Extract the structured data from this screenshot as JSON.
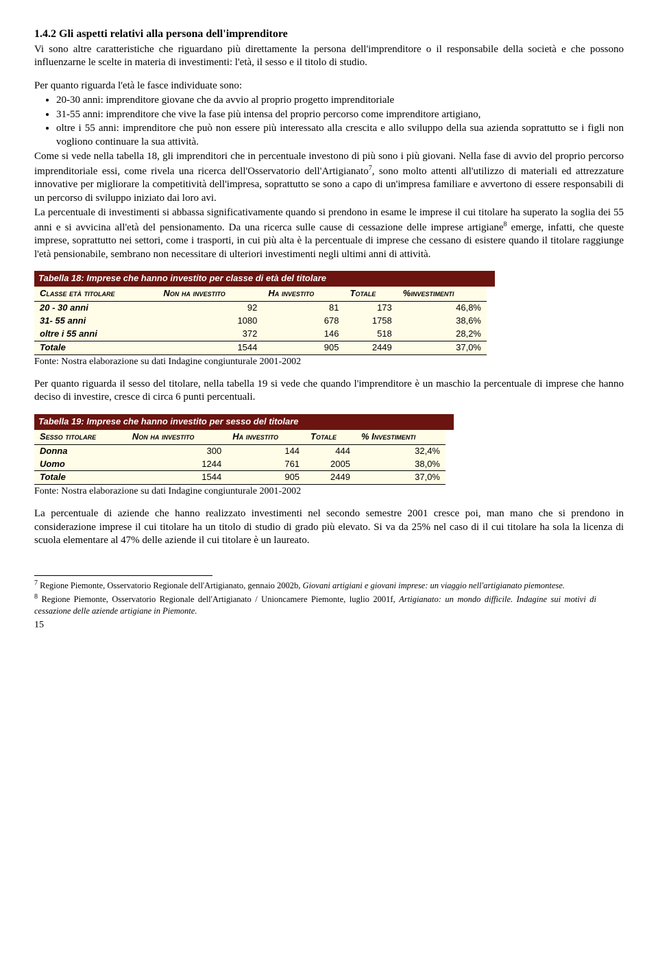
{
  "section": {
    "number": "1.4.2",
    "title": "Gli aspetti relativi alla persona dell'imprenditore"
  },
  "para1": "Vi sono altre caratteristiche che riguardano più direttamente la persona dell'imprenditore o il responsabile della società e che possono influenzarne le scelte in materia di investimenti: l'età, il sesso e il titolo di studio.",
  "para2": "Per quanto riguarda l'età le fasce individuate sono:",
  "bullets": [
    "20-30 anni: imprenditore giovane che da avvio al proprio progetto imprenditoriale",
    "31-55 anni: imprenditore che vive la fase più intensa del proprio percorso come imprenditore artigiano,",
    "oltre i 55 anni: imprenditore che può non essere più interessato alla crescita e allo sviluppo della sua azienda soprattutto se i figli non vogliono continuare la sua attività."
  ],
  "para3_a": "Come si vede nella tabella 18, gli imprenditori che in percentuale investono di più sono i più giovani. Nella fase di avvio del proprio percorso imprenditoriale essi, come rivela una ricerca dell'Osservatorio dell'Artigianato",
  "para3_b": ", sono molto attenti all'utilizzo di materiali ed attrezzature innovative per migliorare la competitività dell'impresa, soprattutto se sono a capo di un'impresa familiare e avvertono di essere responsabili di un percorso di sviluppo iniziato dai loro avi.",
  "para4_a": "La percentuale di investimenti si abbassa significativamente quando si prendono in esame le imprese il cui titolare ha superato la soglia dei 55 anni e si avvicina all'età del pensionamento. Da una ricerca sulle cause di cessazione delle imprese artigiane",
  "para4_b": " emerge, infatti, che queste imprese, soprattutto nei settori, come i trasporti, in cui più alta è la percentuale di imprese che cessano di esistere quando il titolare raggiunge l'età pensionabile, sembrano non necessitare di ulteriori investimenti negli ultimi anni di attività.",
  "table18": {
    "title": "Tabella 18: Imprese che hanno investito per classe di età del titolare",
    "headers": [
      "Classe età titolare",
      "Non ha investito",
      "Ha investito",
      "Totale",
      "%investimenti"
    ],
    "rows": [
      {
        "label": "20 - 30 anni",
        "c1": "92",
        "c2": "81",
        "c3": "173",
        "c4": "46,8%"
      },
      {
        "label": "31- 55 anni",
        "c1": "1080",
        "c2": "678",
        "c3": "1758",
        "c4": "38,6%"
      },
      {
        "label": "oltre i 55 anni",
        "c1": "372",
        "c2": "146",
        "c3": "518",
        "c4": "28,2%"
      }
    ],
    "total": {
      "label": "Totale",
      "c1": "1544",
      "c2": "905",
      "c3": "2449",
      "c4": "37,0%"
    }
  },
  "source": "Fonte: Nostra elaborazione su dati Indagine congiunturale 2001-2002",
  "para5": "Per quanto riguarda il sesso del titolare, nella tabella 19 si vede che quando l'imprenditore è un maschio la percentuale di imprese che hanno deciso di investire, cresce di circa 6 punti percentuali.",
  "table19": {
    "title": "Tabella 19: Imprese che hanno investito per sesso del titolare",
    "headers": [
      "Sesso titolare",
      "Non ha investito",
      "Ha investito",
      "Totale",
      "% Investimenti"
    ],
    "rows": [
      {
        "label": "Donna",
        "c1": "300",
        "c2": "144",
        "c3": "444",
        "c4": "32,4%"
      },
      {
        "label": "Uomo",
        "c1": "1244",
        "c2": "761",
        "c3": "2005",
        "c4": "38,0%"
      }
    ],
    "total": {
      "label": "Totale",
      "c1": "1544",
      "c2": "905",
      "c3": "2449",
      "c4": "37,0%"
    }
  },
  "para6": "La percentuale di aziende che hanno realizzato investimenti nel secondo semestre 2001 cresce poi, man mano che si prendono in considerazione imprese il cui titolare ha un titolo di studio di grado più elevato. Si va da 25% nel caso di il cui titolare ha sola la licenza di scuola elementare al 47% delle aziende il cui titolare è un laureato.",
  "fn7": {
    "num": "7",
    "text_a": " Regione Piemonte, Osservatorio Regionale dell'Artigianato, gennaio 2002b, ",
    "text_i": "Giovani artigiani e giovani imprese: un viaggio nell'artigianato piemontese.",
    "text_b": ""
  },
  "fn8": {
    "num": "8",
    "text_a": " Regione Piemonte, Osservatorio Regionale dell'Artigianato / Unioncamere Piemonte, luglio 2001f, ",
    "text_i": "Artigianato: un mondo difficile. Indagine sui motivi di cessazione delle aziende artigiane in Piemonte.",
    "text_b": ""
  },
  "page": "15"
}
